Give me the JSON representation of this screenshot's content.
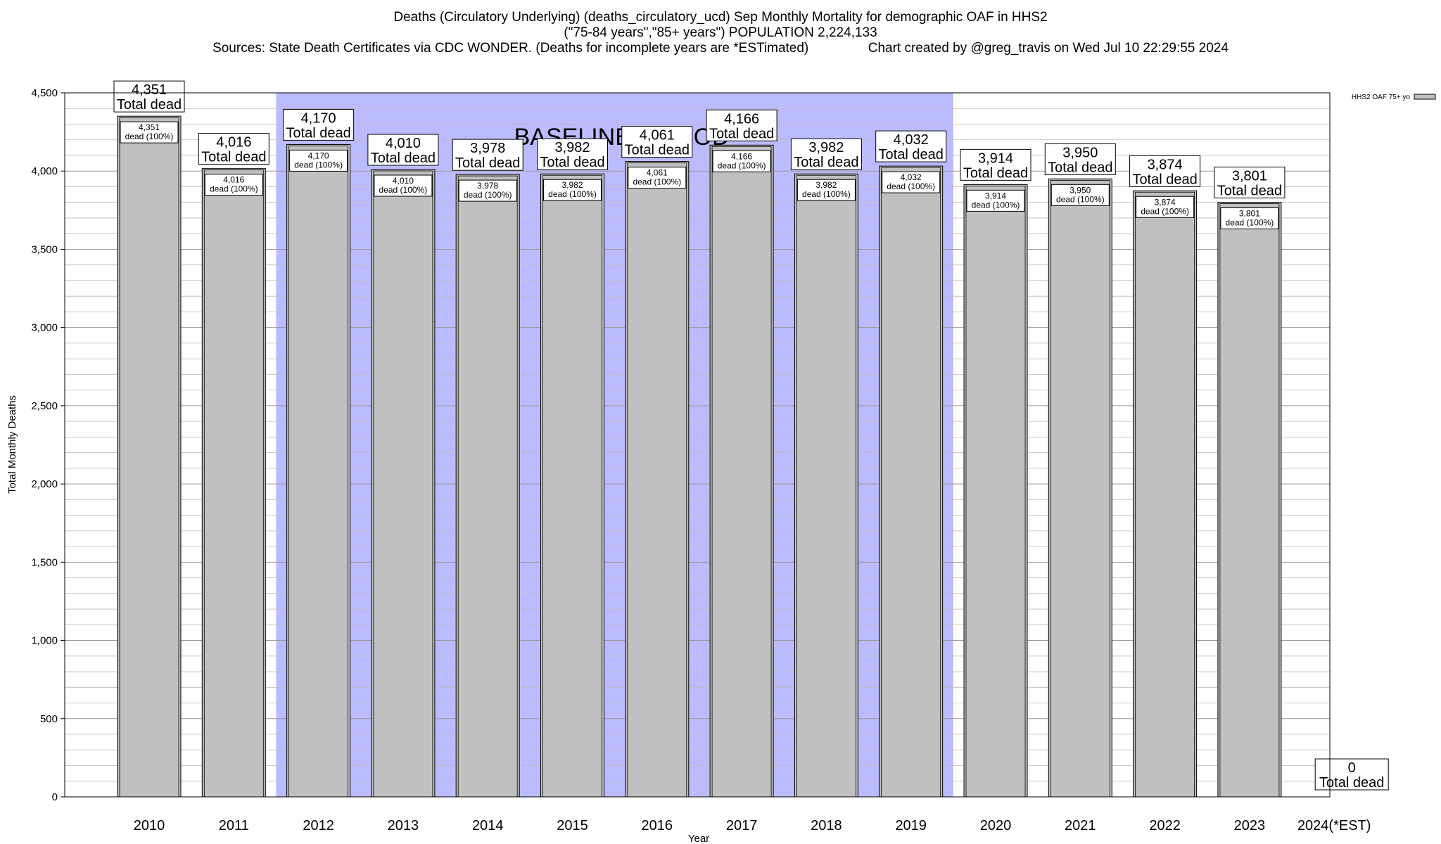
{
  "chart_data": {
    "type": "bar",
    "title": "Deaths (Circulatory Underlying) (deaths_circulatory_ucd) Sep Monthly Mortality for demographic OAF in HHS2",
    "subtitle": "(\"75-84 years\",\"85+ years\") POPULATION 2,224,133",
    "source_line": "Sources: State Death Certificates via CDC WONDER. (Deaths for incomplete years are *ESTimated)",
    "credit_line": "Chart created by @greg_travis on Wed Jul 10 22:29:55 2024",
    "xlabel": "Year",
    "ylabel": "Total Monthly Deaths",
    "ylim": [
      0,
      4500
    ],
    "y_ticks": [
      0,
      500,
      1000,
      1500,
      2000,
      2500,
      3000,
      3500,
      4000,
      4500
    ],
    "y_tick_labels": [
      "0",
      "500",
      "1,000",
      "1,500",
      "2,000",
      "2,500",
      "3,000",
      "3,500",
      "4,000",
      "4,500"
    ],
    "minor_grid_step": 100,
    "categories": [
      "2010",
      "2011",
      "2012",
      "2013",
      "2014",
      "2015",
      "2016",
      "2017",
      "2018",
      "2019",
      "2020",
      "2021",
      "2022",
      "2023",
      "2024(*EST)"
    ],
    "series": [
      {
        "name": "HHS2 OAF 75+ yo",
        "values": [
          4351,
          4016,
          4170,
          4010,
          3978,
          3982,
          4061,
          4166,
          3982,
          4032,
          3914,
          3950,
          3874,
          3801,
          0
        ],
        "color": "#c0c0c0"
      }
    ],
    "total_labels": [
      "4,351",
      "4,016",
      "4,170",
      "4,010",
      "3,978",
      "3,982",
      "4,061",
      "4,166",
      "3,982",
      "4,032",
      "3,914",
      "3,950",
      "3,874",
      "3,801",
      "0"
    ],
    "total_suffix": "Total dead",
    "inner_labels": [
      "4,351",
      "4,016",
      "4,170",
      "4,010",
      "3,978",
      "3,982",
      "4,061",
      "4,166",
      "3,982",
      "4,032",
      "3,914",
      "3,950",
      "3,874",
      "3,801"
    ],
    "inner_suffix": "dead (100%)",
    "baseline_period": {
      "label": "BASELINE PERIOD",
      "from": "2012",
      "to": "2019",
      "color": "#bbbbff"
    },
    "legend": {
      "label": "HHS2 OAF 75+ yo",
      "position": "top-right"
    },
    "grid": true
  }
}
